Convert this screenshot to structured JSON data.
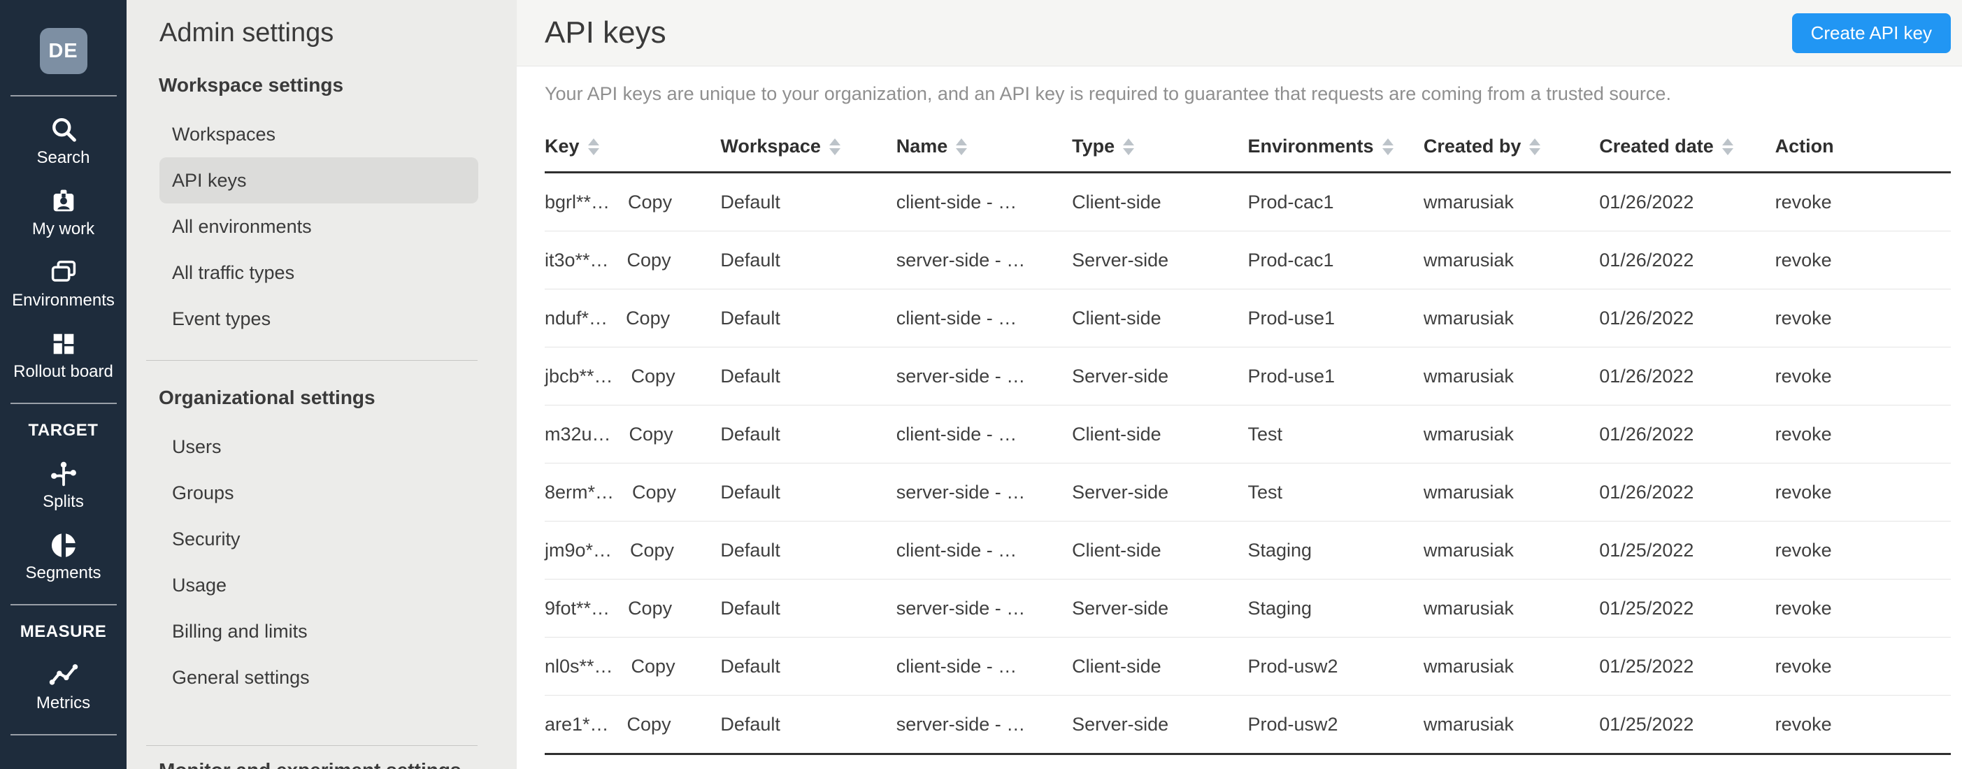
{
  "colors": {
    "accent_blue": "#2196f3",
    "sidebar_bg": "#1e2c3c",
    "avatar_bg": "#7d8fa3",
    "nav_bg": "#ececea",
    "nav_selected_bg": "#dcdcda",
    "header_band_bg": "#f5f5f3",
    "text_dark": "#3c3c3c",
    "text_muted": "#8f8f8f",
    "table_border_dark": "#2f2f2f",
    "table_border_light": "#e4e4e4",
    "sort_icon": "#bcc3c9"
  },
  "sidebar": {
    "avatar_initials": "DE",
    "primary_items": [
      {
        "label": "Search",
        "icon": "search-icon"
      },
      {
        "label": "My work",
        "icon": "badge-icon"
      },
      {
        "label": "Environments",
        "icon": "environments-icon"
      },
      {
        "label": "Rollout board",
        "icon": "rollout-board-icon"
      }
    ],
    "sections": [
      {
        "heading": "TARGET",
        "items": [
          {
            "label": "Splits",
            "icon": "splits-icon"
          },
          {
            "label": "Segments",
            "icon": "segments-icon"
          }
        ]
      },
      {
        "heading": "MEASURE",
        "items": [
          {
            "label": "Metrics",
            "icon": "metrics-icon"
          }
        ]
      }
    ]
  },
  "nav": {
    "title": "Admin settings",
    "sections": [
      {
        "heading": "Workspace settings",
        "items": [
          {
            "label": "Workspaces",
            "selected": false
          },
          {
            "label": "API keys",
            "selected": true
          },
          {
            "label": "All environments",
            "selected": false
          },
          {
            "label": "All traffic types",
            "selected": false
          },
          {
            "label": "Event types",
            "selected": false
          }
        ]
      },
      {
        "heading": "Organizational settings",
        "items": [
          {
            "label": "Users",
            "selected": false
          },
          {
            "label": "Groups",
            "selected": false
          },
          {
            "label": "Security",
            "selected": false
          },
          {
            "label": "Usage",
            "selected": false
          },
          {
            "label": "Billing and limits",
            "selected": false
          },
          {
            "label": "General settings",
            "selected": false
          }
        ]
      }
    ],
    "partial_heading": "Monitor and experiment settings"
  },
  "main": {
    "title": "API keys",
    "create_button_label": "Create API key",
    "description": "Your API keys are unique to your organization, and an API key is required to guarantee that requests are coming from a trusted source.",
    "table": {
      "copy_label": "Copy",
      "action_label": "revoke",
      "columns": [
        {
          "label": "Key",
          "sortable": true
        },
        {
          "label": "Workspace",
          "sortable": true
        },
        {
          "label": "Name",
          "sortable": true
        },
        {
          "label": "Type",
          "sortable": true
        },
        {
          "label": "Environments",
          "sortable": true
        },
        {
          "label": "Created by",
          "sortable": true
        },
        {
          "label": "Created date",
          "sortable": true
        },
        {
          "label": "Action",
          "sortable": false
        }
      ],
      "rows": [
        {
          "key": "bgrl**…",
          "workspace": "Default",
          "name": "client-side - …",
          "type": "Client-side",
          "environments": "Prod-cac1",
          "created_by": "wmarusiak",
          "created_date": "01/26/2022"
        },
        {
          "key": "it3o**…",
          "workspace": "Default",
          "name": "server-side - …",
          "type": "Server-side",
          "environments": "Prod-cac1",
          "created_by": "wmarusiak",
          "created_date": "01/26/2022"
        },
        {
          "key": "nduf*…",
          "workspace": "Default",
          "name": "client-side - …",
          "type": "Client-side",
          "environments": "Prod-use1",
          "created_by": "wmarusiak",
          "created_date": "01/26/2022"
        },
        {
          "key": "jbcb**…",
          "workspace": "Default",
          "name": "server-side - …",
          "type": "Server-side",
          "environments": "Prod-use1",
          "created_by": "wmarusiak",
          "created_date": "01/26/2022"
        },
        {
          "key": "m32u…",
          "workspace": "Default",
          "name": "client-side - …",
          "type": "Client-side",
          "environments": "Test",
          "created_by": "wmarusiak",
          "created_date": "01/26/2022"
        },
        {
          "key": "8erm*…",
          "workspace": "Default",
          "name": "server-side - …",
          "type": "Server-side",
          "environments": "Test",
          "created_by": "wmarusiak",
          "created_date": "01/26/2022"
        },
        {
          "key": "jm9o*…",
          "workspace": "Default",
          "name": "client-side - …",
          "type": "Client-side",
          "environments": "Staging",
          "created_by": "wmarusiak",
          "created_date": "01/25/2022"
        },
        {
          "key": "9fot**…",
          "workspace": "Default",
          "name": "server-side - …",
          "type": "Server-side",
          "environments": "Staging",
          "created_by": "wmarusiak",
          "created_date": "01/25/2022"
        },
        {
          "key": "nl0s**…",
          "workspace": "Default",
          "name": "client-side - …",
          "type": "Client-side",
          "environments": "Prod-usw2",
          "created_by": "wmarusiak",
          "created_date": "01/25/2022"
        },
        {
          "key": "are1*…",
          "workspace": "Default",
          "name": "server-side - …",
          "type": "Server-side",
          "environments": "Prod-usw2",
          "created_by": "wmarusiak",
          "created_date": "01/25/2022"
        }
      ]
    }
  }
}
